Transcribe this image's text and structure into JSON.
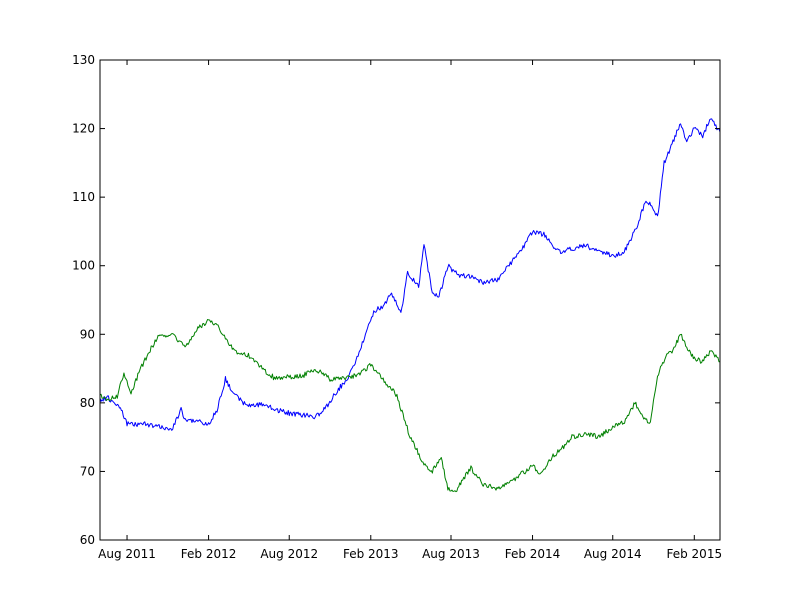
{
  "chart_data": {
    "type": "line",
    "title": "",
    "xlabel": "",
    "ylabel": "",
    "xlim": [
      "2011-06-01",
      "2015-03-31"
    ],
    "ylim": [
      60,
      130
    ],
    "grid": false,
    "x_ticks": [
      {
        "date": "2011-08-01",
        "label": "Aug 2011"
      },
      {
        "date": "2012-02-01",
        "label": "Feb 2012"
      },
      {
        "date": "2012-08-01",
        "label": "Aug 2012"
      },
      {
        "date": "2013-02-01",
        "label": "Feb 2013"
      },
      {
        "date": "2013-08-01",
        "label": "Aug 2013"
      },
      {
        "date": "2014-02-01",
        "label": "Feb 2014"
      },
      {
        "date": "2014-08-01",
        "label": "Aug 2014"
      },
      {
        "date": "2015-02-01",
        "label": "Feb 2015"
      }
    ],
    "y_ticks": [
      {
        "value": 60,
        "label": "60"
      },
      {
        "value": 70,
        "label": "70"
      },
      {
        "value": 80,
        "label": "80"
      },
      {
        "value": 90,
        "label": "90"
      },
      {
        "value": 100,
        "label": "100"
      },
      {
        "value": 110,
        "label": "110"
      },
      {
        "value": 120,
        "label": "120"
      },
      {
        "value": 130,
        "label": "130"
      }
    ],
    "series": [
      {
        "color": "#0000ff",
        "x": [
          "2011-06-01",
          "2011-06-20",
          "2011-07-15",
          "2011-08-01",
          "2011-08-15",
          "2011-09-10",
          "2011-10-10",
          "2011-11-10",
          "2011-12-01",
          "2011-12-10",
          "2012-01-10",
          "2012-02-01",
          "2012-02-20",
          "2012-03-10",
          "2012-04-01",
          "2012-05-01",
          "2012-06-01",
          "2012-07-01",
          "2012-08-01",
          "2012-09-01",
          "2012-10-01",
          "2012-10-25",
          "2012-11-20",
          "2012-12-10",
          "2013-01-01",
          "2013-01-20",
          "2013-02-10",
          "2013-03-01",
          "2013-03-20",
          "2013-04-10",
          "2013-04-25",
          "2013-05-20",
          "2013-06-01",
          "2013-06-20",
          "2013-07-05",
          "2013-07-25",
          "2013-08-10",
          "2013-08-25",
          "2013-09-15",
          "2013-10-15",
          "2013-11-15",
          "2013-12-15",
          "2014-01-15",
          "2014-02-01",
          "2014-03-01",
          "2014-04-01",
          "2014-05-01",
          "2014-06-01",
          "2014-07-01",
          "2014-08-01",
          "2014-08-25",
          "2014-09-20",
          "2014-10-15",
          "2014-10-30",
          "2014-11-10",
          "2014-11-25",
          "2014-12-15",
          "2015-01-01",
          "2015-01-15",
          "2015-02-01",
          "2015-02-20",
          "2015-03-10",
          "2015-03-31"
        ],
        "y": [
          80.5,
          80.7,
          79.5,
          77.0,
          76.8,
          77.0,
          76.5,
          76.2,
          79.0,
          77.5,
          77.3,
          76.8,
          79.0,
          83.5,
          81.0,
          79.5,
          79.8,
          79.0,
          78.5,
          78.2,
          78.0,
          79.5,
          82.0,
          83.5,
          86.5,
          90.0,
          93.5,
          94.0,
          96.0,
          93.0,
          99.0,
          97.0,
          103.0,
          96.0,
          95.5,
          100.0,
          99.0,
          98.5,
          98.5,
          97.5,
          98.0,
          100.5,
          103.0,
          105.0,
          104.5,
          102.0,
          102.5,
          103.0,
          102.0,
          101.5,
          101.8,
          105.0,
          109.5,
          108.5,
          107.0,
          115.0,
          118.0,
          121.0,
          118.0,
          120.0,
          119.0,
          121.5,
          119.5
        ]
      },
      {
        "color": "#008000",
        "x": [
          "2011-06-01",
          "2011-06-20",
          "2011-07-10",
          "2011-07-25",
          "2011-08-10",
          "2011-09-01",
          "2011-09-20",
          "2011-10-10",
          "2011-11-10",
          "2011-12-10",
          "2012-01-10",
          "2012-02-01",
          "2012-02-20",
          "2012-03-10",
          "2012-04-01",
          "2012-05-01",
          "2012-06-01",
          "2012-07-01",
          "2012-08-01",
          "2012-09-01",
          "2012-10-01",
          "2012-11-01",
          "2012-12-01",
          "2013-01-01",
          "2013-02-01",
          "2013-03-01",
          "2013-04-01",
          "2013-05-01",
          "2013-06-01",
          "2013-06-20",
          "2013-07-10",
          "2013-07-25",
          "2013-08-10",
          "2013-08-25",
          "2013-09-15",
          "2013-10-15",
          "2013-11-15",
          "2013-12-15",
          "2014-01-15",
          "2014-02-01",
          "2014-02-20",
          "2014-03-15",
          "2014-04-10",
          "2014-05-01",
          "2014-06-01",
          "2014-07-01",
          "2014-08-01",
          "2014-09-01",
          "2014-09-20",
          "2014-10-10",
          "2014-10-25",
          "2014-11-10",
          "2014-12-01",
          "2014-12-15",
          "2015-01-01",
          "2015-01-15",
          "2015-02-01",
          "2015-02-20",
          "2015-03-10",
          "2015-03-31"
        ],
        "y": [
          81.0,
          80.5,
          81.0,
          84.5,
          81.5,
          85.0,
          87.5,
          89.5,
          90.0,
          88.0,
          91.0,
          92.0,
          91.5,
          89.5,
          87.5,
          87.0,
          85.0,
          83.5,
          83.8,
          84.0,
          84.8,
          83.5,
          83.5,
          84.0,
          85.5,
          83.5,
          81.0,
          75.0,
          71.0,
          70.0,
          72.0,
          67.5,
          67.0,
          68.5,
          70.5,
          68.0,
          67.5,
          68.5,
          70.0,
          71.0,
          69.5,
          72.0,
          73.5,
          75.0,
          75.5,
          75.0,
          76.5,
          77.5,
          80.0,
          78.0,
          77.0,
          84.0,
          87.0,
          87.5,
          90.0,
          88.0,
          86.5,
          86.0,
          87.5,
          86.0
        ]
      }
    ]
  }
}
